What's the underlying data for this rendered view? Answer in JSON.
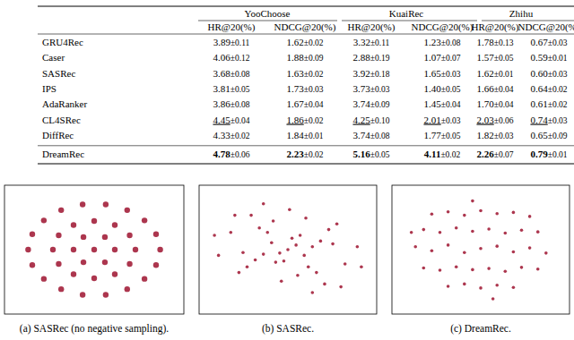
{
  "table": {
    "groups": [
      "YooChoose",
      "KuaiRec",
      "Zhihu"
    ],
    "metrics": [
      "HR@20(%)",
      "NDCG@20(%)"
    ],
    "rows": [
      {
        "method": "GRU4Rec",
        "cells": [
          {
            "mean": "3.89",
            "std": "±0.11"
          },
          {
            "mean": "1.62",
            "std": "±0.02"
          },
          {
            "mean": "3.32",
            "std": "±0.11"
          },
          {
            "mean": "1.23",
            "std": "±0.08"
          },
          {
            "mean": "1.78",
            "std": "±0.13"
          },
          {
            "mean": "0.67",
            "std": "±0.03"
          }
        ]
      },
      {
        "method": "Caser",
        "cells": [
          {
            "mean": "4.06",
            "std": "±0.12"
          },
          {
            "mean": "1.88",
            "std": "±0.09"
          },
          {
            "mean": "2.88",
            "std": "±0.19"
          },
          {
            "mean": "1.07",
            "std": "±0.07"
          },
          {
            "mean": "1.57",
            "std": "±0.05"
          },
          {
            "mean": "0.59",
            "std": "±0.01"
          }
        ]
      },
      {
        "method": "SASRec",
        "cells": [
          {
            "mean": "3.68",
            "std": "±0.08"
          },
          {
            "mean": "1.63",
            "std": "±0.02"
          },
          {
            "mean": "3.92",
            "std": "±0.18"
          },
          {
            "mean": "1.65",
            "std": "±0.03"
          },
          {
            "mean": "1.62",
            "std": "±0.01"
          },
          {
            "mean": "0.60",
            "std": "±0.03"
          }
        ]
      },
      {
        "method": "IPS",
        "cells": [
          {
            "mean": "3.81",
            "std": "±0.05"
          },
          {
            "mean": "1.73",
            "std": "±0.03"
          },
          {
            "mean": "3.73",
            "std": "±0.03"
          },
          {
            "mean": "1.40",
            "std": "±0.05"
          },
          {
            "mean": "1.66",
            "std": "±0.04"
          },
          {
            "mean": "0.64",
            "std": "±0.02"
          }
        ]
      },
      {
        "method": "AdaRanker",
        "cells": [
          {
            "mean": "3.86",
            "std": "±0.08"
          },
          {
            "mean": "1.67",
            "std": "±0.04"
          },
          {
            "mean": "3.74",
            "std": "±0.09"
          },
          {
            "mean": "1.45",
            "std": "±0.04"
          },
          {
            "mean": "1.70",
            "std": "±0.04"
          },
          {
            "mean": "0.61",
            "std": "±0.02"
          }
        ]
      },
      {
        "method": "CL4SRec",
        "cells": [
          {
            "mean": "4.45",
            "std": "±0.04",
            "style": "underline"
          },
          {
            "mean": "1.86",
            "std": "±0.02",
            "style": "underline"
          },
          {
            "mean": "4.25",
            "std": "±0.10",
            "style": "underline"
          },
          {
            "mean": "2.01",
            "std": "±0.03",
            "style": "underline"
          },
          {
            "mean": "2.03",
            "std": "±0.06",
            "style": "underline"
          },
          {
            "mean": "0.74",
            "std": "±0.03",
            "style": "underline"
          }
        ]
      },
      {
        "method": "DiffRec",
        "cells": [
          {
            "mean": "4.33",
            "std": "±0.02"
          },
          {
            "mean": "1.84",
            "std": "±0.01"
          },
          {
            "mean": "3.74",
            "std": "±0.08"
          },
          {
            "mean": "1.77",
            "std": "±0.05"
          },
          {
            "mean": "1.82",
            "std": "±0.03"
          },
          {
            "mean": "0.65",
            "std": "±0.09"
          }
        ]
      },
      {
        "method": "DreamRec",
        "cells": [
          {
            "mean": "4.78",
            "std": "±0.06",
            "style": "bold"
          },
          {
            "mean": "2.23",
            "std": "±0.02",
            "style": "bold"
          },
          {
            "mean": "5.16",
            "std": "±0.05",
            "style": "bold"
          },
          {
            "mean": "4.11",
            "std": "±0.02",
            "style": "bold"
          },
          {
            "mean": "2.26",
            "std": "±0.07",
            "style": "bold"
          },
          {
            "mean": "0.79",
            "std": "±0.01",
            "style": "bold"
          }
        ]
      }
    ]
  },
  "chart_data": [
    {
      "type": "scatter",
      "caption": "(a) SASRec (no negative sampling).",
      "color": "#a3203b",
      "xlim": [
        -1,
        1
      ],
      "ylim": [
        -1,
        1
      ],
      "tick_labels": false,
      "marker": "clump",
      "x": [
        0,
        0.25,
        0.13,
        -0.13,
        -0.25,
        -0.13,
        0.13,
        0.5,
        0.43,
        0.25,
        0,
        -0.25,
        -0.43,
        -0.5,
        -0.43,
        -0.25,
        0,
        0.25,
        0.43,
        0.8,
        0.75,
        0.61,
        0.4,
        0.14,
        -0.14,
        -0.4,
        -0.61,
        -0.75,
        -0.8,
        -0.75,
        -0.61,
        -0.4,
        -0.14,
        0.14,
        0.4,
        0.61,
        0.75
      ],
      "y": [
        0,
        0,
        0.22,
        0.22,
        0,
        -0.22,
        -0.22,
        0,
        0.25,
        0.43,
        0.5,
        0.43,
        0.25,
        0,
        -0.25,
        -0.43,
        -0.5,
        -0.43,
        -0.25,
        0,
        0.27,
        0.51,
        0.69,
        0.79,
        0.79,
        0.69,
        0.51,
        0.27,
        0,
        -0.27,
        -0.51,
        -0.69,
        -0.79,
        -0.79,
        -0.69,
        -0.51,
        -0.27
      ]
    },
    {
      "type": "scatter",
      "caption": "(b) SASRec.",
      "color": "#a3203b",
      "xlim": [
        -1,
        1
      ],
      "ylim": [
        -1,
        1
      ],
      "tick_labels": false,
      "marker": "dot",
      "x": [
        0,
        0.1,
        -0.1,
        0.2,
        -0.2,
        0.05,
        -0.05,
        0.15,
        -0.15,
        0.3,
        -0.3,
        0.25,
        -0.25,
        0.4,
        -0.4,
        0.35,
        -0.35,
        0.55,
        -0.55,
        0.6,
        -0.6,
        0.7,
        -0.7,
        0.85,
        -0.85,
        0.12,
        -0.18,
        0.22,
        -0.08,
        0.45,
        -0.45,
        0.5,
        -0.5,
        0.9,
        -0.9,
        0.02,
        0.65,
        -0.65,
        0.3,
        -0.3
      ],
      "y": [
        0,
        0.08,
        -0.06,
        -0.1,
        0.12,
        0.2,
        -0.2,
        0.25,
        -0.22,
        0.05,
        -0.08,
        -0.3,
        0.3,
        0.15,
        -0.18,
        -0.4,
        0.38,
        0.1,
        -0.05,
        0.45,
        -0.4,
        -0.25,
        0.3,
        0.05,
        -0.1,
        -0.45,
        0.5,
        0.55,
        -0.55,
        -0.6,
        0.6,
        0.35,
        -0.3,
        -0.3,
        0.25,
        0.7,
        -0.65,
        0.6,
        -0.75,
        0.8
      ]
    },
    {
      "type": "scatter",
      "caption": "(c) DreamRec.",
      "color": "#a3203b",
      "xlim": [
        -1,
        1
      ],
      "ylim": [
        -1,
        1
      ],
      "tick_labels": false,
      "marker": "dot",
      "x": [
        -0.8,
        -0.6,
        -0.4,
        -0.2,
        0,
        0.2,
        0.4,
        0.6,
        0.8,
        -0.7,
        -0.5,
        -0.3,
        -0.1,
        0.1,
        0.3,
        0.5,
        0.7,
        -0.6,
        -0.4,
        -0.2,
        0,
        0.2,
        0.4,
        0.6,
        -0.7,
        -0.5,
        -0.3,
        -0.1,
        0.1,
        0.3,
        0.5,
        0.7,
        -0.4,
        -0.2,
        0,
        0.2,
        0.4,
        -0.1,
        0.15,
        -0.85
      ],
      "y": [
        0.05,
        -0.02,
        0.08,
        -0.05,
        0.02,
        0.06,
        -0.04,
        0.03,
        -0.06,
        0.35,
        0.3,
        0.38,
        0.32,
        0.36,
        0.29,
        0.34,
        0.31,
        0.62,
        0.66,
        0.6,
        0.68,
        0.63,
        0.65,
        0.58,
        -0.32,
        -0.36,
        -0.3,
        -0.35,
        -0.33,
        -0.38,
        -0.31,
        -0.34,
        -0.64,
        -0.6,
        -0.67,
        -0.62,
        -0.66,
        0.85,
        -0.86,
        0.3
      ]
    }
  ]
}
